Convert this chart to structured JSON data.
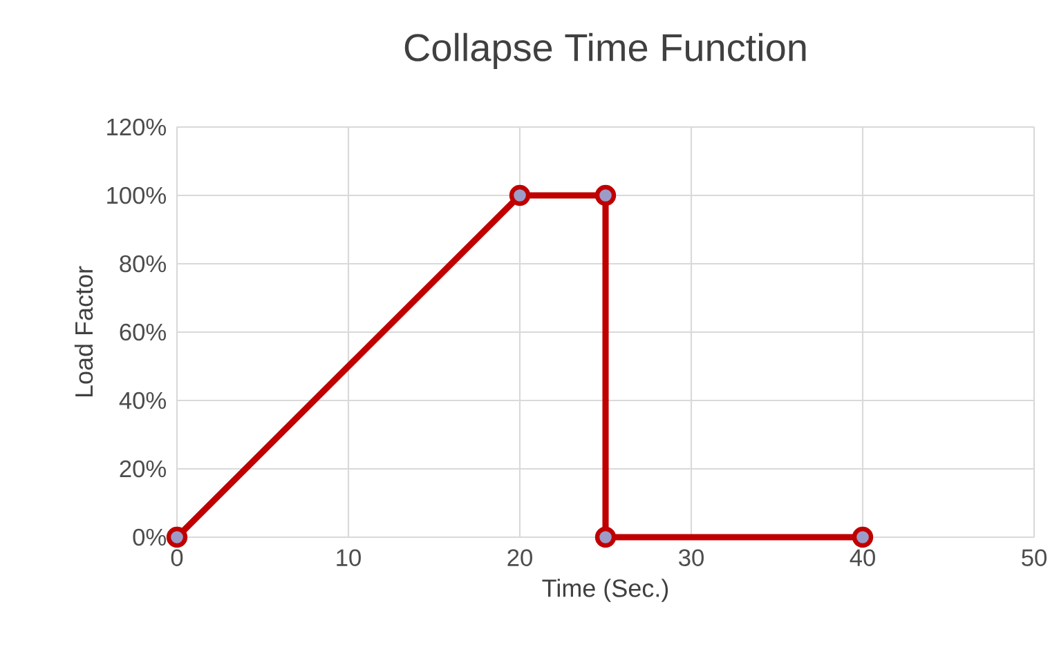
{
  "chart_data": {
    "type": "line",
    "title": "Collapse Time Function",
    "xlabel": "Time (Sec.)",
    "ylabel": "Load Factor",
    "x": [
      0,
      20,
      25,
      25,
      40
    ],
    "series": [
      {
        "color": "#c00000",
        "values": [
          0,
          100,
          100,
          0,
          0
        ]
      }
    ],
    "xlim": [
      0,
      50
    ],
    "xticks": [
      0,
      10,
      20,
      30,
      40,
      50
    ],
    "ylim": [
      0,
      120
    ],
    "yticks": [
      {
        "value": 0,
        "label": "0%"
      },
      {
        "value": 20,
        "label": "20%"
      },
      {
        "value": 40,
        "label": "40%"
      },
      {
        "value": 60,
        "label": "60%"
      },
      {
        "value": 80,
        "label": "80%"
      },
      {
        "value": 100,
        "label": "100%"
      },
      {
        "value": 120,
        "label": "120%"
      }
    ],
    "grid": true,
    "marker": "circle",
    "line_style": "solid"
  }
}
